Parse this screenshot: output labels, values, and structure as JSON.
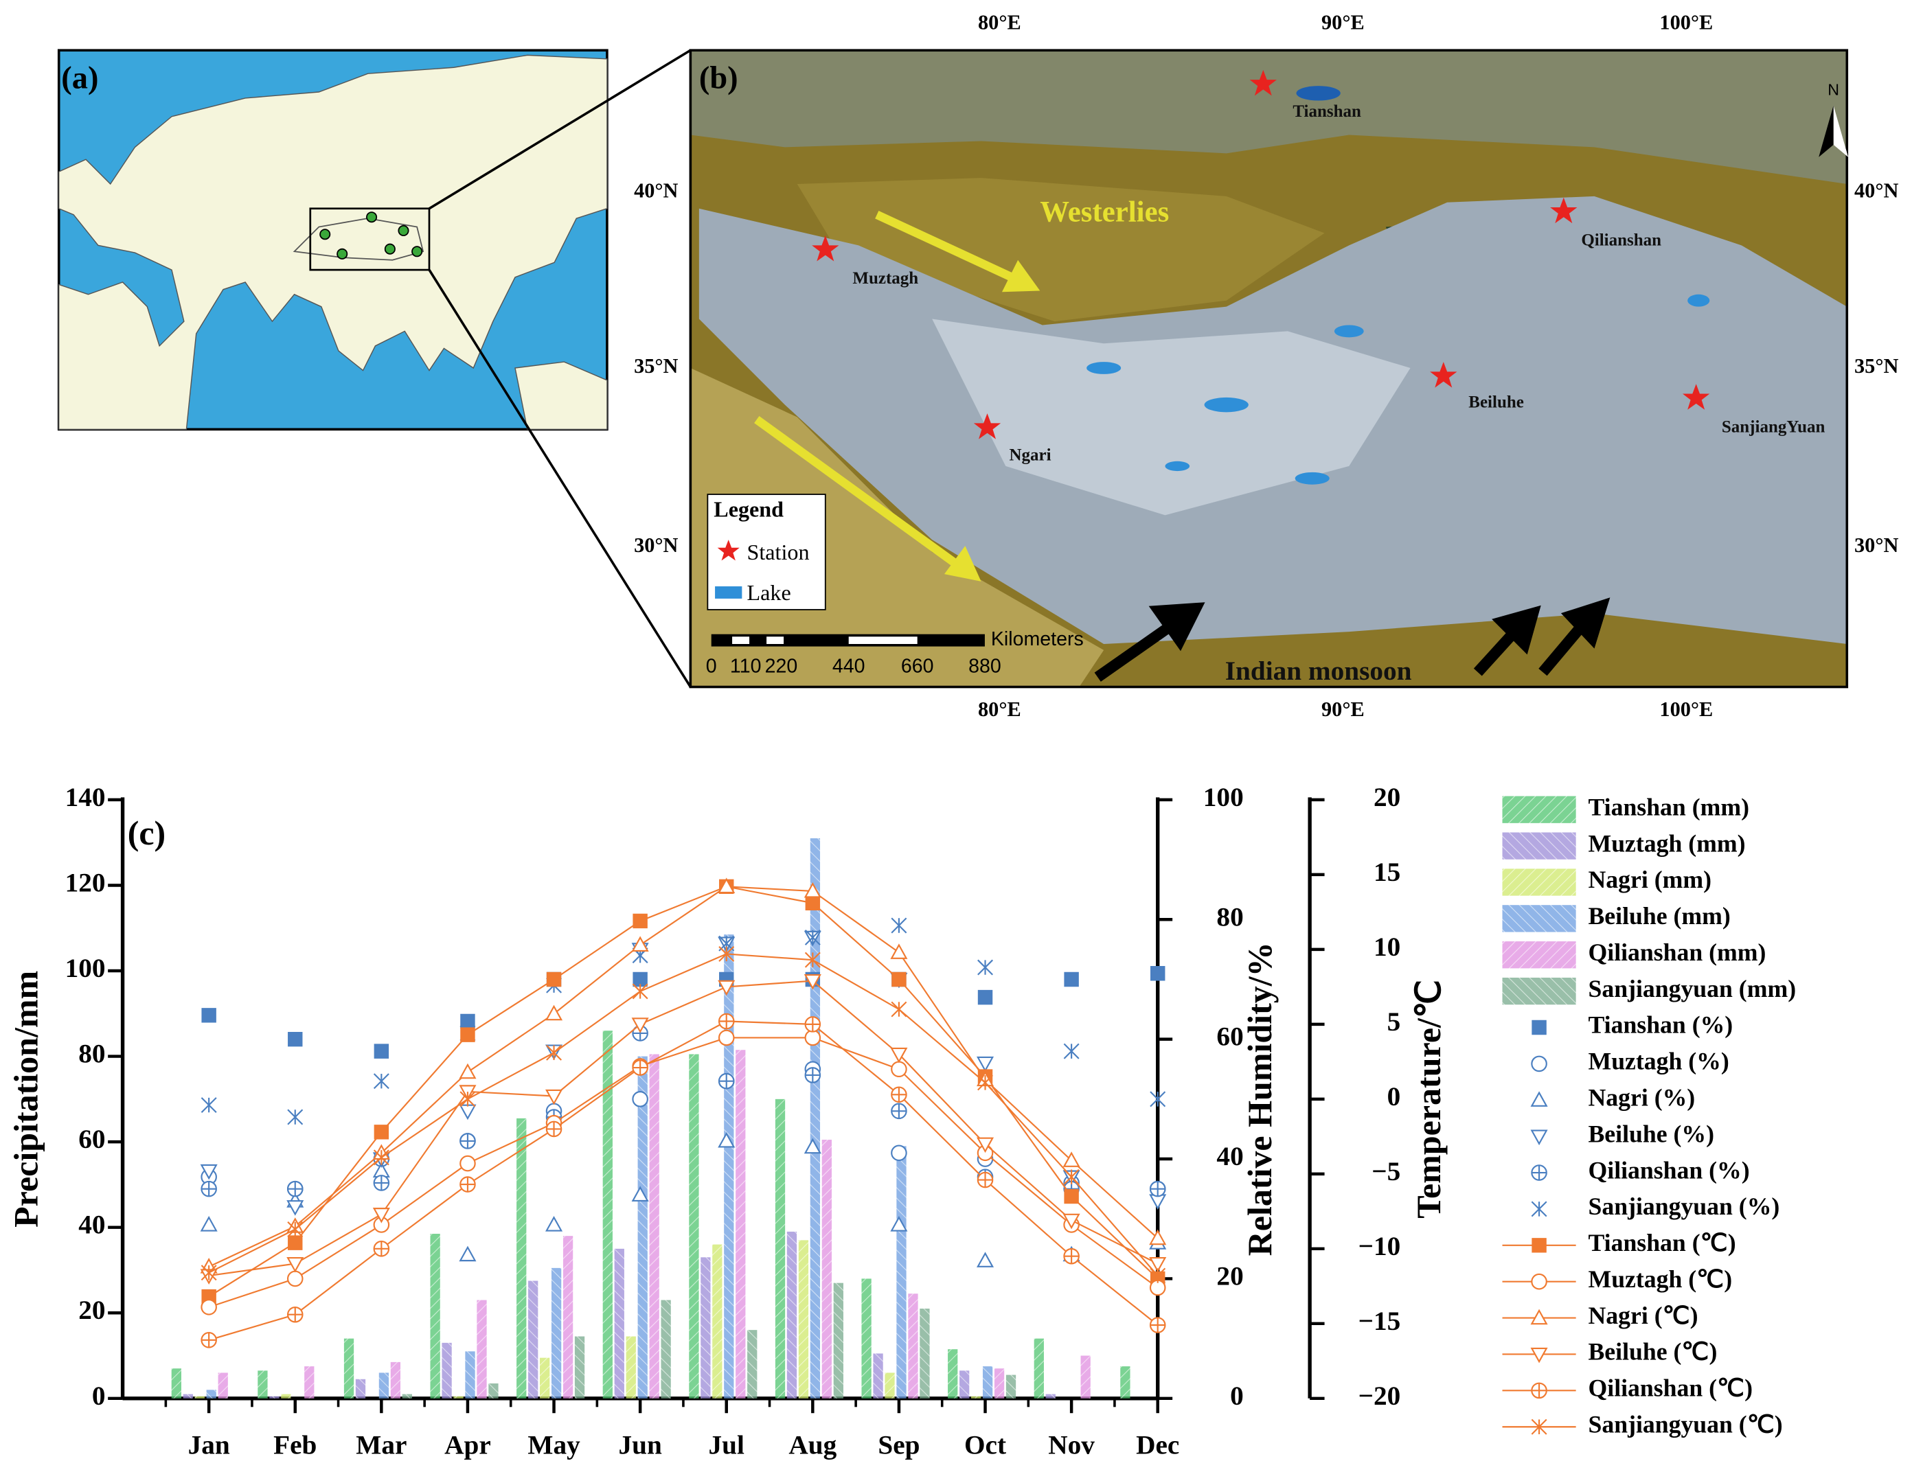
{
  "panel_a": {
    "label": "(a)"
  },
  "panel_b": {
    "label": "(b)",
    "lon_ticks": [
      "80°E",
      "90°E",
      "100°E"
    ],
    "lat_ticks": [
      "40°N",
      "35°N",
      "30°N"
    ],
    "stations": [
      "Tianshan",
      "Qilianshan",
      "Muztagh",
      "Beiluhe",
      "SanjiangYuan",
      "Ngari"
    ],
    "westerlies": "Westerlies",
    "monsoon": "Indian monsoon",
    "legend": {
      "title": "Legend",
      "station": "Station",
      "lake": "Lake"
    },
    "scale": {
      "unit": "Kilometers",
      "ticks": [
        0,
        110,
        220,
        440,
        660,
        880
      ]
    },
    "north": "N"
  },
  "chart_data": [
    {
      "type": "bar",
      "panel_label": "(c)",
      "ylabel": "Precipitation/mm",
      "ylim": [
        0,
        140
      ],
      "yticks": [
        0,
        20,
        40,
        60,
        80,
        100,
        120,
        140
      ],
      "categories": [
        "Jan",
        "Feb",
        "Mar",
        "Apr",
        "May",
        "Jun",
        "Jul",
        "Aug",
        "Sep",
        "Oct",
        "Nov",
        "Dec"
      ],
      "series": [
        {
          "name": "Tianshan (mm)",
          "color": "#4fc46e",
          "values": [
            7,
            6.5,
            14,
            38.5,
            65.5,
            86,
            80.5,
            70,
            28,
            11.5,
            14,
            7.5
          ]
        },
        {
          "name": "Muztagh (mm)",
          "color": "#9a8ad6",
          "values": [
            1,
            0.5,
            4.5,
            13,
            27.5,
            35,
            33,
            39,
            10.5,
            6.5,
            1,
            0
          ]
        },
        {
          "name": "Nagri (mm)",
          "color": "#cfe86a",
          "values": [
            0.5,
            1,
            0,
            0.5,
            9.5,
            14.5,
            36,
            37,
            6,
            0.5,
            0,
            0
          ]
        },
        {
          "name": "Beiluhe (mm)",
          "color": "#6a9ce0",
          "values": [
            2,
            0,
            6,
            11,
            30.5,
            80,
            108.5,
            131,
            59,
            7.5,
            0,
            0
          ]
        },
        {
          "name": "Qilianshan (mm)",
          "color": "#e08ee0",
          "values": [
            6,
            7.5,
            8.5,
            23,
            38,
            80.5,
            81.5,
            60.5,
            24.5,
            7,
            10,
            0
          ]
        },
        {
          "name": "Sanjiangyuan (mm)",
          "color": "#76a98c",
          "values": [
            0,
            0,
            1,
            3.5,
            14.5,
            23,
            16,
            27,
            21,
            5.5,
            0,
            0
          ]
        }
      ]
    },
    {
      "type": "scatter",
      "ylabel": "Relative Humidity/%",
      "ylim": [
        0,
        100
      ],
      "yticks": [
        0,
        20,
        40,
        60,
        80,
        100
      ],
      "series": [
        {
          "name": "Tianshan (%)",
          "color": "#4a7fc1",
          "marker": "square",
          "values": [
            64,
            60,
            58,
            63,
            70,
            70,
            70,
            70,
            70,
            67,
            70,
            71
          ]
        },
        {
          "name": "Muztagh (%)",
          "color": "#4a7fc1",
          "marker": "circle",
          "values": [
            37,
            35,
            40,
            43,
            48,
            50,
            53,
            55,
            41,
            40,
            36,
            35
          ]
        },
        {
          "name": "Nagri (%)",
          "color": "#4a7fc1",
          "marker": "triangle-up",
          "values": [
            29,
            33,
            38,
            24,
            29,
            34,
            43,
            42,
            29,
            23,
            24,
            26
          ]
        },
        {
          "name": "Beiluhe (%)",
          "color": "#4a7fc1",
          "marker": "triangle-down",
          "values": [
            38,
            32,
            40,
            48,
            58,
            75,
            76,
            77,
            70,
            56,
            37,
            33
          ]
        },
        {
          "name": "Qilianshan (%)",
          "color": "#4a7fc1",
          "marker": "circle-plus",
          "values": [
            35,
            35,
            36,
            43,
            47,
            61,
            53,
            54,
            48,
            37,
            35,
            35
          ]
        },
        {
          "name": "Sanjiangyuan (%)",
          "color": "#4a7fc1",
          "marker": "x-star",
          "values": [
            49,
            47,
            53,
            61,
            69,
            74,
            76,
            77,
            79,
            72,
            58,
            50
          ]
        }
      ]
    },
    {
      "type": "line",
      "ylabel": "Temperature/℃",
      "ylim": [
        -20,
        20
      ],
      "yticks": [
        {
          "value": -20,
          "label": "−20"
        },
        {
          "value": -15,
          "label": "−15"
        },
        {
          "value": -10,
          "label": "−10"
        },
        {
          "value": -5,
          "label": "−5"
        },
        0,
        5,
        10,
        15,
        20
      ],
      "series": [
        {
          "name": "Tianshan (℃)",
          "color": "#f07a30",
          "marker": "square",
          "values": [
            -13.2,
            -9.6,
            -2.2,
            4.3,
            8,
            11.9,
            14.2,
            13.1,
            8,
            1.5,
            -6.5,
            -12
          ]
        },
        {
          "name": "Muztagh (℃)",
          "color": "#f07a30",
          "marker": "circle",
          "values": [
            -13.9,
            -12,
            -8.4,
            -4.3,
            -1.6,
            2.2,
            4.1,
            4.1,
            2,
            -3.6,
            -8.4,
            -12.6
          ]
        },
        {
          "name": "Nagri (℃)",
          "color": "#f07a30",
          "marker": "triangle-up",
          "values": [
            -11.2,
            -8.5,
            -3.6,
            1.8,
            5.7,
            10.3,
            14.2,
            13.9,
            9.8,
            1.3,
            -4.1,
            -9.3
          ]
        },
        {
          "name": "Beiluhe (℃)",
          "color": "#f07a30",
          "marker": "triangle-down",
          "values": [
            -11.8,
            -11,
            -7.7,
            0.5,
            0.2,
            5,
            7.5,
            7.9,
            3,
            -3,
            -8.1,
            -11
          ]
        },
        {
          "name": "Qilianshan (℃)",
          "color": "#f07a30",
          "marker": "circle-plus",
          "values": [
            -16.1,
            -14.4,
            -10,
            -5.7,
            -2,
            2.1,
            5.2,
            5,
            0.3,
            -5.4,
            -10.5,
            -15.1
          ]
        },
        {
          "name": "Sanjiangyuan (℃)",
          "color": "#f07a30",
          "marker": "x-star",
          "values": [
            -11.6,
            -8.7,
            -3.9,
            0,
            3.1,
            7.2,
            9.7,
            9.3,
            6,
            1.1,
            -5.2,
            -11.8
          ]
        }
      ]
    }
  ]
}
